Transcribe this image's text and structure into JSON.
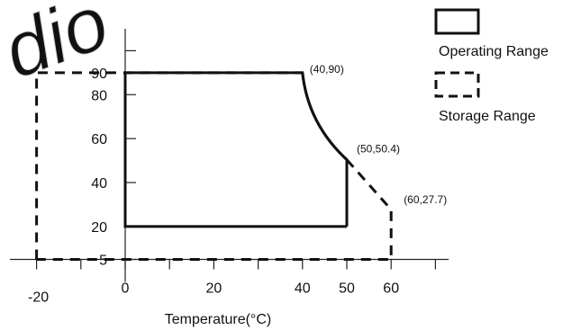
{
  "colors": {
    "ink": "#111111",
    "axis": "#222222",
    "background": "#ffffff"
  },
  "watermark_text": "dio",
  "axis": {
    "x_title": "Temperature(°C)",
    "x_ticks": [
      {
        "value": -20,
        "label": "-20"
      },
      {
        "value": 0,
        "label": "0"
      },
      {
        "value": 20,
        "label": "20"
      },
      {
        "value": 40,
        "label": "40"
      },
      {
        "value": 50,
        "label": "50"
      },
      {
        "value": 60,
        "label": "60"
      }
    ],
    "x_minor_ticks": [
      -10,
      10,
      30,
      70
    ],
    "y_ticks": [
      {
        "value": 5,
        "label": "5"
      },
      {
        "value": 20,
        "label": "20"
      },
      {
        "value": 40,
        "label": "40"
      },
      {
        "value": 60,
        "label": "60"
      },
      {
        "value": 80,
        "label": "80"
      },
      {
        "value": 90,
        "label": "90"
      }
    ],
    "y_minor_ticks": [
      100
    ],
    "x_range": [
      -26,
      73
    ],
    "y_range": [
      -2,
      110
    ]
  },
  "point_labels": [
    {
      "text": "(40,90)",
      "x": 40,
      "y": 90
    },
    {
      "text": "(50,50.4)",
      "x": 50,
      "y": 50.4
    },
    {
      "text": "(60,27.7)",
      "x": 60,
      "y": 27.7
    }
  ],
  "legend": [
    {
      "label": "Operating Range",
      "style": "solid"
    },
    {
      "label": "Storage Range",
      "style": "dashed"
    }
  ],
  "operating_range": {
    "label": "Operating Range",
    "points": [
      [
        0,
        20
      ],
      [
        0,
        90
      ],
      [
        40,
        90
      ],
      [
        50,
        50.4
      ],
      [
        50,
        20
      ]
    ]
  },
  "storage_range": {
    "label": "Storage Range",
    "points": [
      [
        -20,
        5
      ],
      [
        -20,
        90
      ],
      [
        40,
        90
      ],
      [
        50,
        50.4
      ],
      [
        60,
        27.7
      ],
      [
        60,
        5
      ]
    ]
  }
}
